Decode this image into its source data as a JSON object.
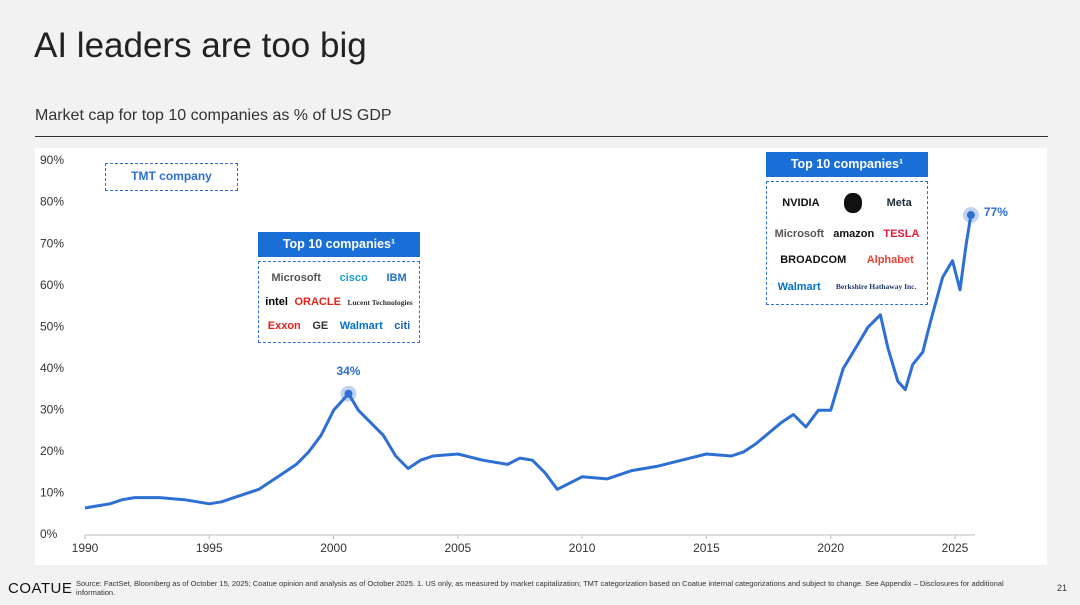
{
  "title": "AI leaders are too big",
  "subtitle": "Market cap for top 10 companies as % of US GDP",
  "chart_data": {
    "type": "line",
    "color": "#2e6fd4",
    "x": [
      1990,
      1990.5,
      1991,
      1991.5,
      1992,
      1993,
      1994,
      1995,
      1995.5,
      1996,
      1997,
      1998,
      1998.5,
      1999,
      1999.5,
      2000,
      2000.6,
      2001,
      2001.5,
      2002,
      2002.5,
      2003,
      2003.5,
      2004,
      2005,
      2006,
      2007,
      2007.5,
      2008,
      2008.5,
      2009,
      2009.5,
      2010,
      2011,
      2012,
      2013,
      2014,
      2015,
      2016,
      2016.5,
      2017,
      2018,
      2018.5,
      2019,
      2019.5,
      2020,
      2020.5,
      2021,
      2021.5,
      2022,
      2022.3,
      2022.7,
      2023,
      2023.3,
      2023.7,
      2024,
      2024.5,
      2024.9,
      2025.2,
      2025.45,
      2025.64
    ],
    "values": [
      6.5,
      7,
      7.5,
      8.5,
      9,
      9,
      8.5,
      7.5,
      8,
      9,
      11,
      15,
      17,
      20,
      24,
      30,
      34,
      30,
      27,
      24,
      19,
      16,
      18,
      19,
      19.5,
      18,
      17,
      18.5,
      18,
      15,
      11,
      12.5,
      14,
      13.5,
      15.5,
      16.5,
      18,
      19.5,
      19,
      20,
      22,
      27,
      29,
      26,
      30,
      30,
      40,
      45,
      50,
      53,
      45,
      37,
      35,
      41,
      44,
      51,
      62,
      66,
      59,
      70,
      77
    ],
    "xlim": [
      1990,
      2028
    ],
    "xticks": [
      1990,
      1995,
      2000,
      2005,
      2010,
      2015,
      2020,
      2025
    ],
    "ylim": [
      0,
      90
    ],
    "yticks": [
      {
        "value": 0,
        "label": "0%"
      },
      {
        "value": 10,
        "label": "10%"
      },
      {
        "value": 20,
        "label": "20%"
      },
      {
        "value": 30,
        "label": "30%"
      },
      {
        "value": 40,
        "label": "40%"
      },
      {
        "value": 50,
        "label": "50%"
      },
      {
        "value": 60,
        "label": "60%"
      },
      {
        "value": 70,
        "label": "70%"
      },
      {
        "value": 80,
        "label": "80%"
      },
      {
        "value": 90,
        "label": "90%"
      }
    ],
    "annotations": [
      {
        "text": "34%",
        "x": 2000.6,
        "y": 34
      },
      {
        "text": "77%",
        "x": 2025.64,
        "y": 77
      }
    ],
    "legend": "TMT company",
    "callouts": [
      {
        "title": "Top 10 companies¹",
        "rows": [
          [
            {
              "name": "Microsoft",
              "color": "#555"
            },
            {
              "name": "cisco",
              "color": "#1ba0d7"
            },
            {
              "name": "IBM",
              "color": "#1f70c1"
            }
          ],
          [
            {
              "name": "intel",
              "color": "#000"
            },
            {
              "name": "ORACLE",
              "color": "#e2231a"
            },
            {
              "name": "Lucent Technologies",
              "color": "#333"
            }
          ],
          [
            {
              "name": "Exxon",
              "color": "#e2231a"
            },
            {
              "name": "GE",
              "color": "#333"
            },
            {
              "name": "Walmart",
              "color": "#0071ce"
            },
            {
              "name": "citi",
              "color": "#1f5fa8"
            }
          ]
        ]
      },
      {
        "title": "Top 10 companies¹",
        "rows": [
          [
            {
              "name": "NVIDIA",
              "color": "#111"
            },
            {
              "name": "Meta",
              "color": "#1c2b33"
            }
          ],
          [
            {
              "name": "Microsoft",
              "color": "#555"
            },
            {
              "name": "amazon",
              "color": "#111"
            },
            {
              "name": "TESLA",
              "color": "#e31937"
            }
          ],
          [
            {
              "name": "BROADCOM",
              "color": "#111"
            },
            {
              "name": "Alphabet",
              "color": "#ea4335"
            }
          ],
          [
            {
              "name": "Walmart",
              "color": "#0071ce"
            },
            {
              "name": "Berkshire Hathaway Inc.",
              "color": "#1f3a6e"
            }
          ]
        ]
      }
    ]
  },
  "footer": {
    "logo": "COATUE",
    "source": "Source: FactSet, Bloomberg as of October 15, 2025; Coatue opinion and analysis as of October 2025. 1. US only, as measured by market capitalization; TMT categorization based on Coatue internal categorizations and subject to change. See Appendix – Disclosures for additional information.",
    "page": "21"
  }
}
